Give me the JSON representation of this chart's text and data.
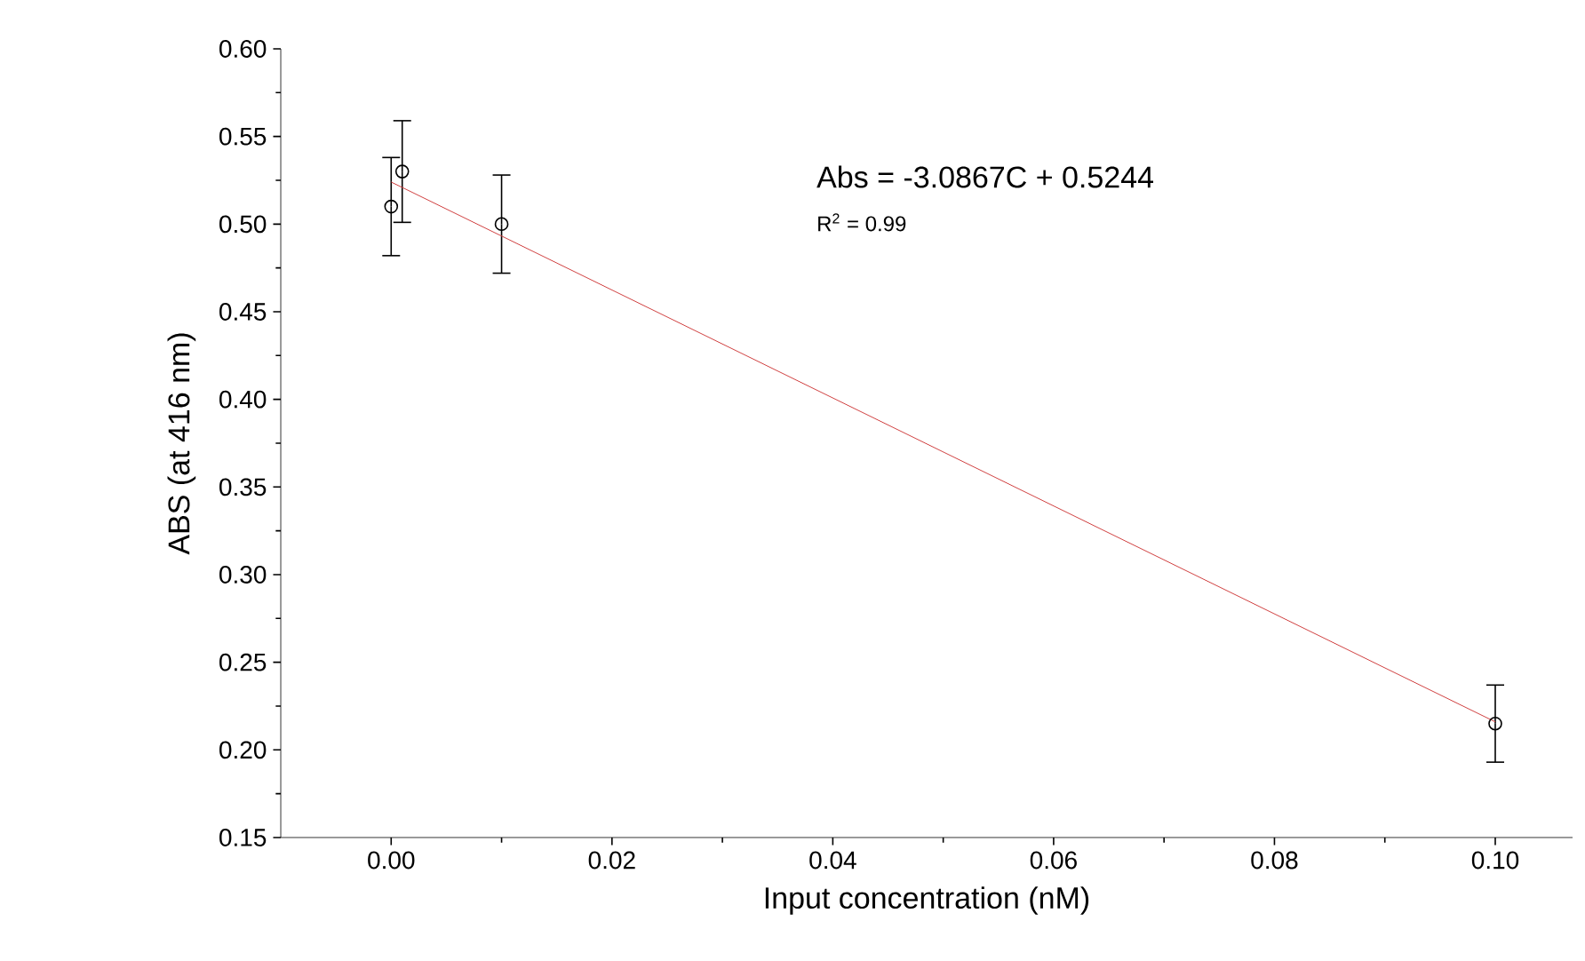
{
  "chart_data": {
    "type": "scatter",
    "xlabel": "Input concentration (nM)",
    "ylabel": "ABS (at 416 nm)",
    "xlim": [
      -0.01,
      0.107
    ],
    "ylim": [
      0.15,
      0.6
    ],
    "xticks": [
      {
        "value": 0,
        "label": "0.00"
      },
      {
        "value": 0.02,
        "label": "0.02"
      },
      {
        "value": 0.04,
        "label": "0.04"
      },
      {
        "value": 0.06,
        "label": "0.06"
      },
      {
        "value": 0.08,
        "label": "0.08"
      },
      {
        "value": 0.1,
        "label": "0.10"
      }
    ],
    "yticks": [
      {
        "value": 0.15,
        "label": "0.15"
      },
      {
        "value": 0.2,
        "label": "0.20"
      },
      {
        "value": 0.25,
        "label": "0.25"
      },
      {
        "value": 0.3,
        "label": "0.30"
      },
      {
        "value": 0.35,
        "label": "0.35"
      },
      {
        "value": 0.4,
        "label": "0.40"
      },
      {
        "value": 0.45,
        "label": "0.45"
      },
      {
        "value": 0.5,
        "label": "0.50"
      },
      {
        "value": 0.55,
        "label": "0.55"
      },
      {
        "value": 0.6,
        "label": "0.60"
      }
    ],
    "series": [
      {
        "color": "#000000",
        "marker": "circle",
        "x": [
          0,
          0.001,
          0.01,
          0.1
        ],
        "values": [
          0.51,
          0.53,
          0.5,
          0.215
        ],
        "errors": [
          0.028,
          0.029,
          0.028,
          0.022
        ]
      },
      {
        "type": "line",
        "color": "#d04040",
        "marker": "none",
        "x": [
          0,
          0.1
        ],
        "values": [
          0.524,
          0.216
        ]
      }
    ],
    "annotations": [
      "Abs = -3.0867C + 0.5244",
      "R$^{2}$ = 0.99"
    ],
    "grid": false
  }
}
